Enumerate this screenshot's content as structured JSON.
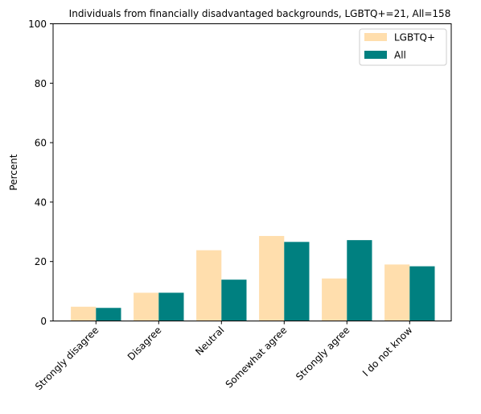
{
  "chart_data": {
    "type": "bar",
    "title": "Individuals from financially disadvantaged backgrounds, LGBTQ+=21, All=158",
    "xlabel": "",
    "ylabel": "Percent",
    "ylim": [
      0,
      100
    ],
    "yticks": [
      0,
      20,
      40,
      60,
      80,
      100
    ],
    "grid": false,
    "legend_position": "top-right",
    "categories": [
      "Strongly disagree",
      "Disagree",
      "Neutral",
      "Somewhat agree",
      "Strongly agree",
      "I do not know"
    ],
    "series": [
      {
        "name": "LGBTQ+",
        "color": "#FFDEAD",
        "values": [
          4.8,
          9.5,
          23.8,
          28.6,
          14.3,
          19.0
        ]
      },
      {
        "name": "All",
        "color": "#008080",
        "values": [
          4.4,
          9.5,
          13.9,
          26.6,
          27.2,
          18.4
        ]
      }
    ]
  }
}
